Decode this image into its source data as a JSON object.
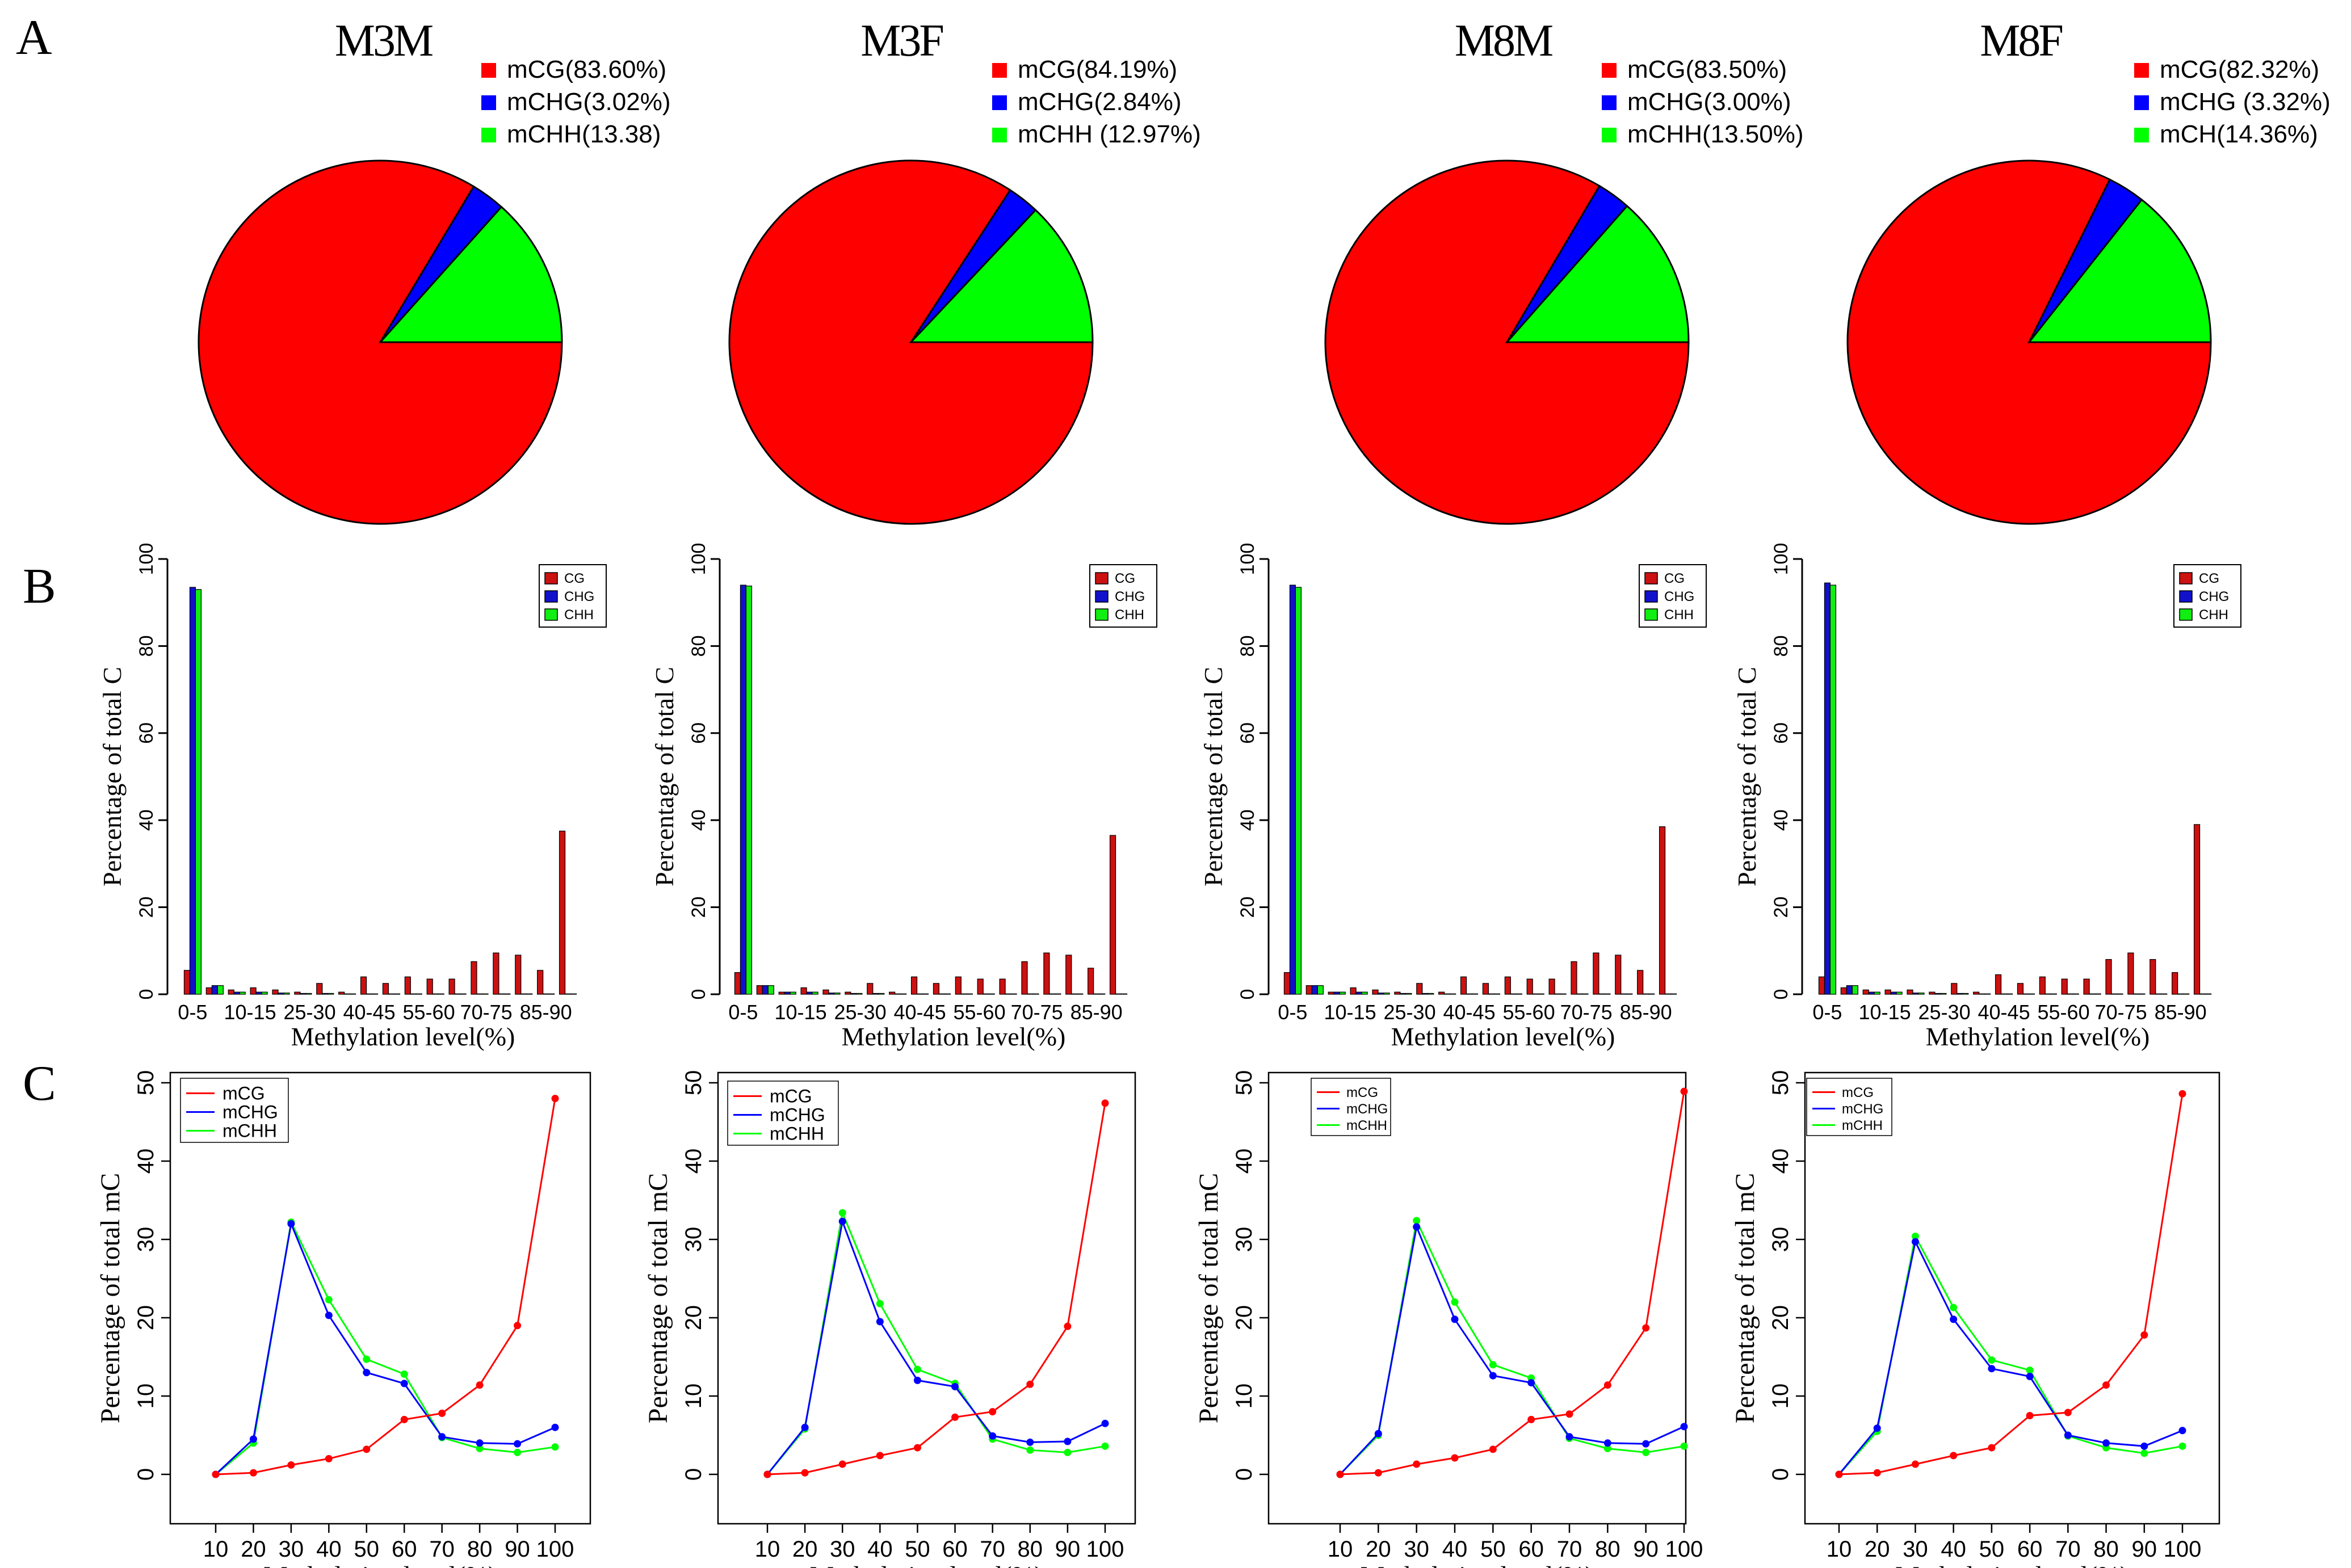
{
  "panel_letters": [
    "A",
    "B",
    "C"
  ],
  "colors": {
    "cg": "#ff0000",
    "chg": "#0000ff",
    "chh": "#00ff00",
    "bar_cg": "#cc1111",
    "bar_chg": "#1111cc",
    "bar_chh": "#11ee11"
  },
  "chart_data": [
    {
      "type": "pie",
      "title": "M3M",
      "legend_position": "top-right",
      "slices": [
        {
          "label": "mCG(83.60%)",
          "value": 83.6
        },
        {
          "label": "mCHG(3.02%)",
          "value": 3.02
        },
        {
          "label": "mCHH(13.38)",
          "value": 13.38
        }
      ]
    },
    {
      "type": "pie",
      "title": "M3F",
      "legend_position": "top-right",
      "slices": [
        {
          "label": "mCG(84.19%)",
          "value": 84.19
        },
        {
          "label": "mCHG(2.84%)",
          "value": 2.84
        },
        {
          "label": "mCHH (12.97%)",
          "value": 12.97
        }
      ]
    },
    {
      "type": "pie",
      "title": "M8M",
      "legend_position": "top-right",
      "slices": [
        {
          "label": "mCG(83.50%)",
          "value": 83.5
        },
        {
          "label": "mCHG(3.00%)",
          "value": 3.0
        },
        {
          "label": "mCHH(13.50%)",
          "value": 13.5
        }
      ]
    },
    {
      "type": "pie",
      "title": "M8F",
      "legend_position": "top-right",
      "slices": [
        {
          "label": "mCG(82.32%)",
          "value": 82.32
        },
        {
          "label": "mCHG (3.32%)",
          "value": 3.32
        },
        {
          "label": "mCH(14.36%)",
          "value": 14.36
        }
      ]
    },
    {
      "type": "bar",
      "panel": "M3M",
      "xlabel": "Methylation level(%)",
      "ylabel": "Percentage of total C",
      "ylim": [
        0,
        100
      ],
      "yticks": [
        "0",
        "20",
        "40",
        "60",
        "80",
        "100"
      ],
      "tick_labels": [
        "0-5",
        "10-15",
        "25-30",
        "40-45",
        "55-60",
        "70-75",
        "85-90"
      ],
      "legend": [
        "CG",
        "CHG",
        "CHH"
      ],
      "legend_position": "top-right",
      "series": [
        {
          "name": "CG",
          "values": [
            5.5,
            1.5,
            1.0,
            1.5,
            1.0,
            0.5,
            2.5,
            0.5,
            4.0,
            2.5,
            4.0,
            3.5,
            3.5,
            7.5,
            9.5,
            9.0,
            5.5,
            37.5
          ]
        },
        {
          "name": "CHG",
          "values": [
            93.5,
            2.0,
            0.5,
            0.5,
            0.3,
            0.2,
            0.2,
            0.1,
            0.1,
            0.1,
            0.1,
            0.1,
            0.1,
            0.1,
            0.1,
            0.1,
            0.1,
            0.1
          ]
        },
        {
          "name": "CHH",
          "values": [
            93.0,
            2.0,
            0.5,
            0.5,
            0.3,
            0.2,
            0.2,
            0.1,
            0.1,
            0.1,
            0.1,
            0.1,
            0.1,
            0.1,
            0.1,
            0.1,
            0.1,
            0.1
          ]
        }
      ]
    },
    {
      "type": "bar",
      "panel": "M3F",
      "xlabel": "Methylation level(%)",
      "ylabel": "Percentage of total C",
      "ylim": [
        0,
        100
      ],
      "yticks": [
        "0",
        "20",
        "40",
        "60",
        "80",
        "100"
      ],
      "tick_labels": [
        "0-5",
        "10-15",
        "25-30",
        "40-45",
        "55-60",
        "70-75",
        "85-90"
      ],
      "legend": [
        "CG",
        "CHG",
        "CHH"
      ],
      "legend_position": "top-right",
      "series": [
        {
          "name": "CG",
          "values": [
            5.0,
            2.0,
            0.5,
            1.5,
            1.0,
            0.5,
            2.5,
            0.5,
            4.0,
            2.5,
            4.0,
            3.5,
            3.5,
            7.5,
            9.5,
            9.0,
            6.0,
            36.5
          ]
        },
        {
          "name": "CHG",
          "values": [
            94.0,
            2.0,
            0.5,
            0.5,
            0.3,
            0.2,
            0.2,
            0.1,
            0.1,
            0.1,
            0.1,
            0.1,
            0.1,
            0.1,
            0.1,
            0.1,
            0.1,
            0.1
          ]
        },
        {
          "name": "CHH",
          "values": [
            93.8,
            2.0,
            0.5,
            0.5,
            0.3,
            0.2,
            0.2,
            0.1,
            0.1,
            0.1,
            0.1,
            0.1,
            0.1,
            0.1,
            0.1,
            0.1,
            0.1,
            0.1
          ]
        }
      ]
    },
    {
      "type": "bar",
      "panel": "M8M",
      "xlabel": "Methylation level(%)",
      "ylabel": "Percentage of total C",
      "ylim": [
        0,
        100
      ],
      "yticks": [
        "0",
        "20",
        "40",
        "60",
        "80",
        "100"
      ],
      "tick_labels": [
        "0-5",
        "10-15",
        "25-30",
        "40-45",
        "55-60",
        "70-75",
        "85-90"
      ],
      "legend": [
        "CG",
        "CHG",
        "CHH"
      ],
      "legend_position": "top-right",
      "series": [
        {
          "name": "CG",
          "values": [
            5.0,
            2.0,
            0.5,
            1.5,
            1.0,
            0.5,
            2.5,
            0.5,
            4.0,
            2.5,
            4.0,
            3.5,
            3.5,
            7.5,
            9.5,
            9.0,
            5.5,
            38.5
          ]
        },
        {
          "name": "CHG",
          "values": [
            94.0,
            2.0,
            0.5,
            0.5,
            0.3,
            0.2,
            0.2,
            0.1,
            0.1,
            0.1,
            0.1,
            0.1,
            0.1,
            0.1,
            0.1,
            0.1,
            0.1,
            0.1
          ]
        },
        {
          "name": "CHH",
          "values": [
            93.5,
            2.0,
            0.5,
            0.5,
            0.3,
            0.2,
            0.2,
            0.1,
            0.1,
            0.1,
            0.1,
            0.1,
            0.1,
            0.1,
            0.1,
            0.1,
            0.1,
            0.1
          ]
        }
      ]
    },
    {
      "type": "bar",
      "panel": "M8F",
      "xlabel": "Methylation level(%)",
      "ylabel": "Percentage of total C",
      "ylim": [
        0,
        100
      ],
      "yticks": [
        "0",
        "20",
        "40",
        "60",
        "80",
        "100"
      ],
      "tick_labels": [
        "0-5",
        "10-15",
        "25-30",
        "40-45",
        "55-60",
        "70-75",
        "85-90"
      ],
      "legend": [
        "CG",
        "CHG",
        "CHH"
      ],
      "legend_position": "top-right",
      "series": [
        {
          "name": "CG",
          "values": [
            4.0,
            1.5,
            1.0,
            1.0,
            1.0,
            0.5,
            2.5,
            0.5,
            4.5,
            2.5,
            4.0,
            3.5,
            3.5,
            8.0,
            9.5,
            8.0,
            5.0,
            39.0
          ]
        },
        {
          "name": "CHG",
          "values": [
            94.5,
            2.0,
            0.5,
            0.5,
            0.3,
            0.2,
            0.2,
            0.1,
            0.1,
            0.1,
            0.1,
            0.1,
            0.1,
            0.1,
            0.1,
            0.1,
            0.1,
            0.1
          ]
        },
        {
          "name": "CHH",
          "values": [
            94.0,
            2.0,
            0.5,
            0.5,
            0.3,
            0.2,
            0.2,
            0.1,
            0.1,
            0.1,
            0.1,
            0.1,
            0.1,
            0.1,
            0.1,
            0.1,
            0.1,
            0.1
          ]
        }
      ]
    },
    {
      "type": "line",
      "panel": "M3M",
      "xlabel": "Methylation level(%)",
      "ylabel": "Percentage of total mC",
      "x": [
        10,
        20,
        30,
        40,
        50,
        60,
        70,
        80,
        90,
        100
      ],
      "xticks": [
        "10",
        "20",
        "30",
        "40",
        "50",
        "60",
        "70",
        "80",
        "90",
        "100"
      ],
      "yticks": [
        "0",
        "10",
        "20",
        "30",
        "40",
        "50"
      ],
      "ylim": [
        0,
        50
      ],
      "legend_position": "top-left",
      "series": [
        {
          "name": "mCG",
          "values": [
            0.0,
            0.2,
            1.2,
            2.0,
            3.2,
            7.0,
            7.8,
            11.4,
            19.0,
            48.0
          ]
        },
        {
          "name": "mCHG",
          "values": [
            0.0,
            4.5,
            32.0,
            20.3,
            13.0,
            11.6,
            4.8,
            4.0,
            3.9,
            6.0
          ]
        },
        {
          "name": "mCHH",
          "values": [
            0.0,
            4.0,
            32.2,
            22.3,
            14.7,
            12.8,
            4.7,
            3.3,
            2.8,
            3.5
          ]
        }
      ]
    },
    {
      "type": "line",
      "panel": "M3F",
      "xlabel": "Methylation level(%)",
      "ylabel": "Percentage of total mC",
      "x": [
        10,
        20,
        30,
        40,
        50,
        60,
        70,
        80,
        90,
        100
      ],
      "xticks": [
        "10",
        "20",
        "30",
        "40",
        "50",
        "60",
        "70",
        "80",
        "90",
        "100"
      ],
      "yticks": [
        "0",
        "10",
        "20",
        "30",
        "40",
        "50"
      ],
      "ylim": [
        0,
        50
      ],
      "legend_position": "top-left",
      "series": [
        {
          "name": "mCG",
          "values": [
            0.0,
            0.2,
            1.3,
            2.4,
            3.4,
            7.3,
            8.0,
            11.5,
            18.9,
            47.4
          ]
        },
        {
          "name": "mCHG",
          "values": [
            0.0,
            6.0,
            32.3,
            19.5,
            12.0,
            11.2,
            4.9,
            4.1,
            4.2,
            6.5
          ]
        },
        {
          "name": "mCHH",
          "values": [
            0.0,
            5.8,
            33.4,
            21.8,
            13.4,
            11.6,
            4.5,
            3.1,
            2.8,
            3.6
          ]
        }
      ]
    },
    {
      "type": "line",
      "panel": "M8M",
      "xlabel": "Methylation level(%)",
      "ylabel": "Percentage of total mC",
      "x": [
        10,
        20,
        30,
        40,
        50,
        60,
        70,
        80,
        90,
        100
      ],
      "xticks": [
        "10",
        "20",
        "30",
        "40",
        "50",
        "60",
        "70",
        "80",
        "90",
        "100"
      ],
      "yticks": [
        "0",
        "10",
        "20",
        "30",
        "40",
        "50"
      ],
      "ylim": [
        0,
        50
      ],
      "legend_position": "top-left",
      "series": [
        {
          "name": "mCG",
          "values": [
            0.0,
            0.2,
            1.3,
            2.1,
            3.2,
            7.0,
            7.7,
            11.4,
            18.7,
            48.9
          ]
        },
        {
          "name": "mCHG",
          "values": [
            0.0,
            5.2,
            31.6,
            19.8,
            12.6,
            11.7,
            4.8,
            4.0,
            3.9,
            6.1
          ]
        },
        {
          "name": "mCHH",
          "values": [
            0.0,
            5.0,
            32.4,
            22.0,
            14.0,
            12.3,
            4.6,
            3.3,
            2.8,
            3.6
          ]
        }
      ]
    },
    {
      "type": "line",
      "panel": "M8F",
      "xlabel": "Methylation level(%)",
      "ylabel": "Percentage of total mC",
      "x": [
        10,
        20,
        30,
        40,
        50,
        60,
        70,
        80,
        90,
        100
      ],
      "xticks": [
        "10",
        "20",
        "30",
        "40",
        "50",
        "60",
        "70",
        "80",
        "90",
        "100"
      ],
      "yticks": [
        "0",
        "10",
        "20",
        "30",
        "40",
        "50"
      ],
      "ylim": [
        0,
        50
      ],
      "legend_position": "top-left",
      "series": [
        {
          "name": "mCG",
          "values": [
            0.0,
            0.2,
            1.3,
            2.4,
            3.4,
            7.5,
            7.9,
            11.4,
            17.8,
            48.6
          ]
        },
        {
          "name": "mCHG",
          "values": [
            0.0,
            5.9,
            29.7,
            19.8,
            13.5,
            12.5,
            5.0,
            4.0,
            3.6,
            5.6
          ]
        },
        {
          "name": "mCHH",
          "values": [
            0.0,
            5.5,
            30.4,
            21.3,
            14.6,
            13.3,
            4.9,
            3.4,
            2.7,
            3.6
          ]
        }
      ]
    }
  ]
}
